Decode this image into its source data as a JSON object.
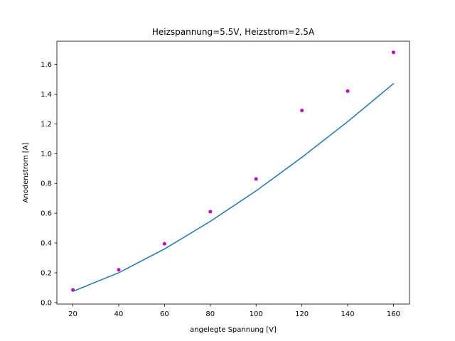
{
  "chart_data": {
    "type": "scatter",
    "title": "Heizspannung=5.5V, Heizstrom=2.5A",
    "xlabel": "angelegte Spannung [V]",
    "ylabel": "Anodenstrom [A]",
    "xlim": [
      13,
      167
    ],
    "ylim": [
      -0.01,
      1.755
    ],
    "xticks": [
      20,
      40,
      60,
      80,
      100,
      120,
      140,
      160
    ],
    "xtick_labels": [
      "20",
      "40",
      "60",
      "80",
      "100",
      "120",
      "140",
      "160"
    ],
    "yticks": [
      0.0,
      0.2,
      0.4,
      0.6,
      0.8,
      1.0,
      1.2,
      1.4,
      1.6
    ],
    "ytick_labels": [
      "0.0",
      "0.2",
      "0.4",
      "0.6",
      "0.8",
      "1.0",
      "1.2",
      "1.4",
      "1.6"
    ],
    "grid": false,
    "series": [
      {
        "kind": "points",
        "color": "#bf00bf",
        "x": [
          20,
          40,
          60,
          80,
          100,
          120,
          140,
          160
        ],
        "y": [
          0.085,
          0.22,
          0.395,
          0.61,
          0.83,
          1.29,
          1.42,
          1.68
        ]
      },
      {
        "kind": "line",
        "color": "#1f77b4",
        "x": [
          20,
          40,
          60,
          80,
          100,
          120,
          140,
          160
        ],
        "y": [
          0.075,
          0.2,
          0.36,
          0.545,
          0.75,
          0.975,
          1.215,
          1.47
        ]
      }
    ]
  }
}
